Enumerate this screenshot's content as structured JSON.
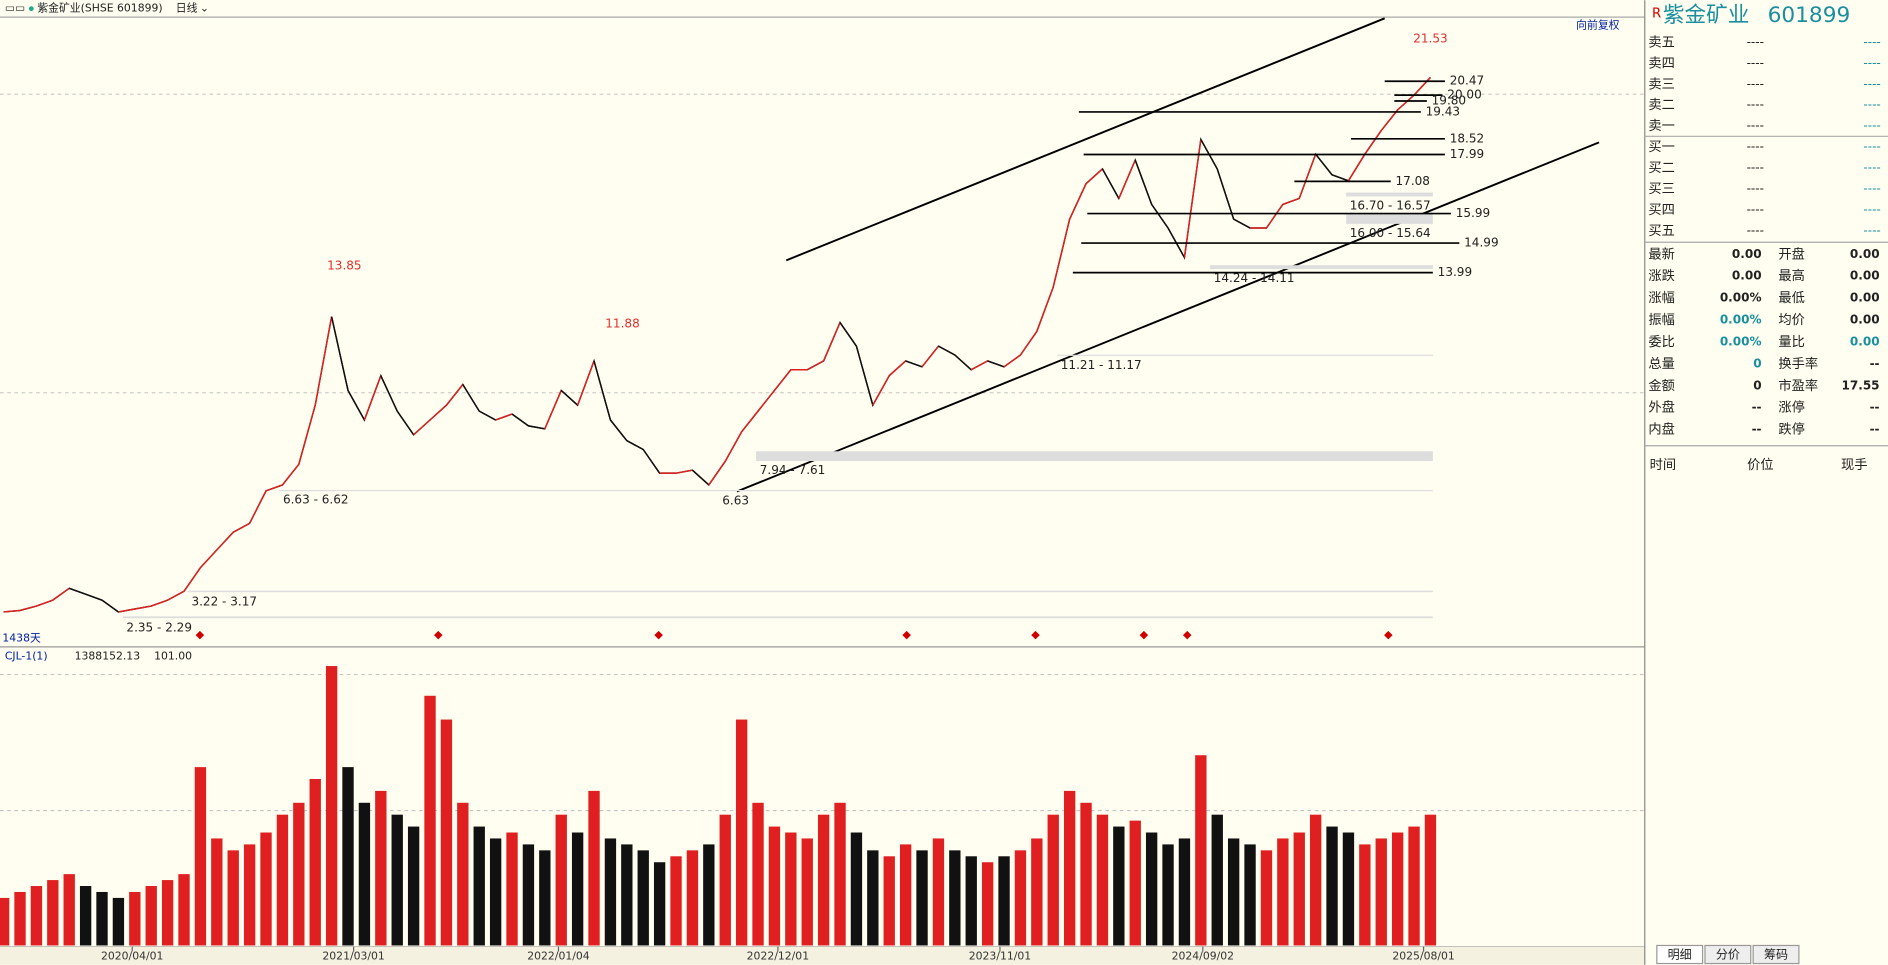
{
  "toolbar": {
    "symbol": "紫金矿业(SHSE 601899)",
    "period": "日线",
    "adjust": "向前复权"
  },
  "chart_data": [
    {
      "type": "line",
      "color": "#111",
      "up_color": "#e02020",
      "ylim": [
        1.4,
        22.6
      ],
      "xlim": [
        "2019/09/20",
        "2025/08/15"
      ],
      "xticks": [
        "2020/04/01",
        "2021/03/01",
        "2022/01/04",
        "2022/12/01",
        "2023/11/01",
        "2024/09/02",
        "2025/08/01"
      ],
      "values": [
        2.5,
        2.55,
        2.7,
        2.9,
        3.3,
        3.1,
        2.9,
        2.5,
        2.6,
        2.7,
        2.9,
        3.2,
        4.0,
        4.6,
        5.2,
        5.5,
        6.6,
        6.8,
        7.5,
        9.5,
        12.5,
        10.0,
        9.0,
        10.5,
        9.3,
        8.5,
        9.0,
        9.5,
        10.2,
        9.3,
        9.0,
        9.2,
        8.8,
        8.7,
        10.0,
        9.5,
        11.0,
        9.0,
        8.3,
        8.0,
        7.2,
        7.2,
        7.3,
        6.8,
        7.6,
        8.6,
        9.3,
        10.0,
        10.7,
        10.7,
        11.0,
        12.3,
        11.5,
        9.5,
        10.5,
        11.0,
        10.8,
        11.5,
        11.2,
        10.7,
        11.0,
        10.8,
        11.2,
        12.0,
        13.5,
        15.8,
        17.0,
        17.5,
        16.5,
        17.8,
        16.3,
        15.5,
        14.5,
        18.5,
        17.5,
        15.8,
        15.5,
        15.5,
        16.3,
        16.5,
        18.0,
        17.3,
        17.1,
        18.0,
        18.8,
        19.5,
        20.0,
        20.6
      ],
      "levels": [
        {
          "value": 20.47,
          "label": "20.47"
        },
        {
          "value": 20.0,
          "label": "20.00"
        },
        {
          "value": 19.8,
          "label": "19.80"
        },
        {
          "value": 19.43,
          "label": "19.43"
        },
        {
          "value": 18.52,
          "label": "18.52"
        },
        {
          "value": 17.99,
          "label": "17.99"
        },
        {
          "value": 17.08,
          "label": "17.08"
        },
        {
          "value": 15.99,
          "label": "15.99"
        },
        {
          "value": 14.99,
          "label": "14.99"
        },
        {
          "value": 13.99,
          "label": "13.99"
        }
      ],
      "zones": [
        {
          "values": [
            16.7,
            16.57
          ],
          "label": "16.70 - 16.57"
        },
        {
          "values": [
            16.0,
            15.64
          ],
          "label": "16.00 - 15.64"
        },
        {
          "values": [
            14.24,
            14.11
          ],
          "label": "14.24 - 14.11"
        },
        {
          "values": [
            11.21,
            11.17
          ],
          "label": "11.21 - 11.17"
        },
        {
          "values": [
            7.94,
            7.61
          ],
          "label": "7.94 - 7.61"
        },
        {
          "values": [
            6.63,
            6.62
          ],
          "label": "6.63 - 6.62"
        },
        {
          "values": [
            3.22,
            3.17
          ],
          "label": "3.22 - 3.17"
        },
        {
          "values": [
            2.35,
            2.29
          ],
          "label": "2.35 - 2.29"
        }
      ],
      "extremes": [
        {
          "value": 13.85,
          "label": "13.85"
        },
        {
          "value": 11.88,
          "label": "11.88"
        },
        {
          "value": 21.53,
          "label": "21.53"
        },
        {
          "value": 6.63,
          "label": "6.63"
        }
      ],
      "day_count": "1438天"
    },
    {
      "type": "bar",
      "indicator": "CJL-1(1)",
      "readout": [
        "1388152.13",
        "101.00"
      ],
      "ylim": [
        0,
        240
      ],
      "values": [
        40,
        45,
        50,
        55,
        60,
        50,
        45,
        40,
        45,
        50,
        55,
        60,
        150,
        90,
        80,
        85,
        95,
        110,
        120,
        140,
        235,
        150,
        120,
        130,
        110,
        100,
        210,
        190,
        120,
        100,
        90,
        95,
        85,
        80,
        110,
        95,
        130,
        90,
        85,
        80,
        70,
        75,
        80,
        85,
        110,
        190,
        120,
        100,
        95,
        90,
        110,
        120,
        95,
        80,
        75,
        85,
        80,
        90,
        80,
        75,
        70,
        75,
        80,
        90,
        110,
        130,
        120,
        110,
        100,
        105,
        95,
        85,
        90,
        160,
        110,
        90,
        85,
        80,
        90,
        95,
        110,
        100,
        95,
        85,
        90,
        95,
        100,
        110
      ]
    }
  ],
  "quote": {
    "flag": "R",
    "name": "紫金矿业",
    "code": "601899",
    "book": [
      [
        "卖五",
        "----",
        "----"
      ],
      [
        "卖四",
        "----",
        "----"
      ],
      [
        "卖三",
        "----",
        "----"
      ],
      [
        "卖二",
        "----",
        "----"
      ],
      [
        "卖一",
        "----",
        "----"
      ],
      [
        "买一",
        "----",
        "----"
      ],
      [
        "买二",
        "----",
        "----"
      ],
      [
        "买三",
        "----",
        "----"
      ],
      [
        "买四",
        "----",
        "----"
      ],
      [
        "买五",
        "----",
        "----"
      ]
    ],
    "stats": [
      [
        "最新",
        "0.00",
        "开盘",
        "0.00"
      ],
      [
        "涨跌",
        "0.00",
        "最高",
        "0.00"
      ],
      [
        "涨幅",
        "0.00%",
        "最低",
        "0.00"
      ],
      [
        "振幅",
        "0.00%",
        "均价",
        "0.00"
      ],
      [
        "委比",
        "0.00%",
        "量比",
        "0.00"
      ],
      [
        "总量",
        "0",
        "换手率",
        "--"
      ],
      [
        "金额",
        "0",
        "市盈率",
        "17.55"
      ],
      [
        "外盘",
        "--",
        "涨停",
        "--"
      ],
      [
        "内盘",
        "--",
        "跌停",
        "--"
      ]
    ],
    "trades_header": [
      "时间",
      "价位",
      "现手"
    ],
    "tabs": [
      "明细",
      "分价",
      "筹码"
    ]
  }
}
